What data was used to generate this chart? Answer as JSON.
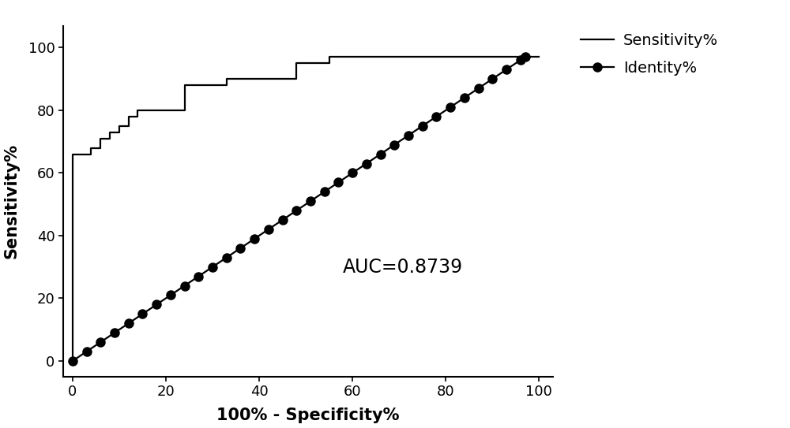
{
  "title": "",
  "xlabel": "100% - Specificity%",
  "ylabel": "Sensitivity%",
  "auc_text": "AUC=0.8739",
  "auc_x": 58,
  "auc_y": 30,
  "xlim": [
    -2,
    103
  ],
  "ylim": [
    -5,
    107
  ],
  "xticks": [
    0,
    20,
    40,
    60,
    80,
    100
  ],
  "yticks": [
    0,
    20,
    40,
    60,
    80,
    100
  ],
  "roc_x": [
    0,
    0,
    2,
    4,
    6,
    8,
    10,
    12,
    14,
    17,
    20,
    24,
    28,
    33,
    37,
    42,
    48,
    55,
    63,
    72,
    82,
    92,
    100
  ],
  "roc_y": [
    0,
    66,
    66,
    68,
    71,
    73,
    75,
    78,
    80,
    80,
    80,
    88,
    88,
    90,
    90,
    90,
    95,
    97,
    97,
    97,
    97,
    97,
    97
  ],
  "identity_x": [
    0,
    3,
    6,
    9,
    12,
    15,
    18,
    21,
    24,
    27,
    30,
    33,
    36,
    39,
    42,
    45,
    48,
    51,
    54,
    57,
    60,
    63,
    66,
    69,
    72,
    75,
    78,
    81,
    84,
    87,
    90,
    93,
    96,
    97
  ],
  "identity_y": [
    0,
    3,
    6,
    9,
    12,
    15,
    18,
    21,
    24,
    27,
    30,
    33,
    36,
    39,
    42,
    45,
    48,
    51,
    54,
    57,
    60,
    63,
    66,
    69,
    72,
    75,
    78,
    81,
    84,
    87,
    90,
    93,
    96,
    97
  ],
  "line_color": "#000000",
  "bg_color": "#ffffff",
  "font_color": "#000000",
  "legend_sensitivity_label": "Sensitivity%",
  "legend_identity_label": "Identity%",
  "auc_fontsize": 17,
  "axis_label_fontsize": 15,
  "tick_fontsize": 13,
  "legend_fontsize": 14,
  "line_width": 1.6,
  "marker_size": 8,
  "figsize": [
    10.0,
    5.43
  ],
  "dpi": 100
}
